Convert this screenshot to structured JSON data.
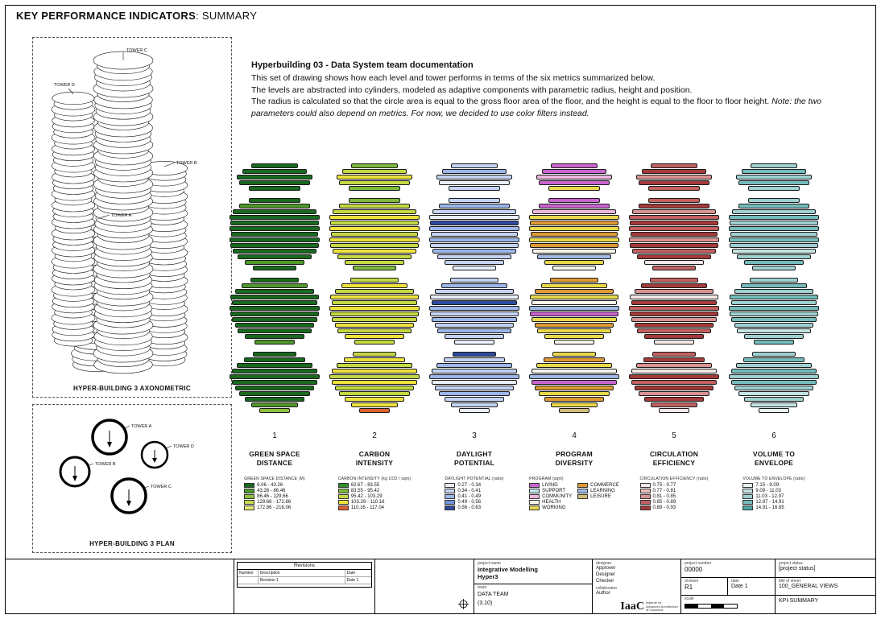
{
  "page": {
    "title_bold": "KEY PERFORMANCE INDICATORS",
    "title_rest": ": SUMMARY"
  },
  "description": {
    "heading": "Hyperbuilding 03 - Data System team documentation",
    "line1": "This set of drawing  shows how each level and tower performs in terms of the six metrics summarized below.",
    "line2": "The levels are abstracted into  cylinders, modeled as adaptive components with parametric radius, height and position.",
    "line3": "The radius is calculated so that the circle area is equal to the gross floor area of the floor, and the height is equal to the floor to floor height. ",
    "line3_italic": "Note: the two parameters could also depend on metrics. For now, we decided to use color filters instead."
  },
  "axon": {
    "caption": "HYPER-BUILDING 3 AXONOMETRIC",
    "labels": {
      "a": "TOWER A",
      "b": "TOWER B",
      "c": "TOWER C",
      "d": "TOWER D"
    }
  },
  "plan": {
    "caption": "HYPER-BUILDING 3 PLAN",
    "labels": {
      "a": "TOWER A",
      "b": "TOWER B",
      "c": "TOWER C",
      "d": "TOWER D"
    }
  },
  "stack": {
    "widths": [
      [
        52,
        72,
        84,
        78,
        58
      ],
      [
        58,
        78,
        92,
        100,
        98,
        100,
        96,
        100,
        98,
        92,
        82,
        66,
        48
      ],
      [
        54,
        74,
        88,
        98,
        94,
        100,
        98,
        94,
        88,
        82,
        66,
        44
      ],
      [
        48,
        68,
        84,
        94,
        100,
        94,
        88,
        78,
        66,
        52,
        34
      ]
    ]
  },
  "metrics": [
    {
      "number": "1",
      "title": "GREEN SPACE DISTANCE",
      "legend_header": "GREEN SPACE DISTANCE (M)",
      "palette": [
        "#19691f",
        "#50982c",
        "#8fc03c",
        "#c3da4e",
        "#e6ec74"
      ],
      "colors": [
        "00000",
        "0100000000010",
        "010000000001",
        "00000000012"
      ],
      "legend_cols": [
        [
          {
            "c": 0,
            "label": "6.06 - 43.26"
          },
          {
            "c": 1,
            "label": "43.26 - 86.46"
          },
          {
            "c": 2,
            "label": "86.46 - 129.66"
          },
          {
            "c": 3,
            "label": "129.66 - 172.86"
          },
          {
            "c": 4,
            "label": "172.86 - 216.06"
          }
        ]
      ]
    },
    {
      "number": "2",
      "title": "CARBON INTENSITY",
      "legend_header": "CARBON INTENSITY (kg CO2 / sqm)",
      "palette": [
        "#2f8f2f",
        "#7cb93b",
        "#c4d843",
        "#eee23d",
        "#e06030"
      ],
      "colors": [
        "12321",
        "1223232323221",
        "232323223232",
        "23232322334"
      ],
      "legend_cols": [
        [
          {
            "c": 0,
            "label": "62.67 - 83.55"
          },
          {
            "c": 1,
            "label": "83.55 - 95.42"
          },
          {
            "c": 2,
            "label": "95.42 - 103.29"
          },
          {
            "c": 3,
            "label": "103.29 - 110.16"
          },
          {
            "c": 4,
            "label": "110.16 - 117.04"
          }
        ]
      ]
    },
    {
      "number": "3",
      "title": "DAYLIGHT POTENTIAL",
      "legend_header": "DAYLIGHT POTENTIAL (ratio)",
      "palette": [
        "#e8eefb",
        "#c4d3f3",
        "#9cb6ea",
        "#7093dc",
        "#2d4a9e"
      ],
      "colors": [
        "12101",
        "1210421212110",
        "121042121210",
        "41212012110"
      ],
      "legend_cols": [
        [
          {
            "c": 0,
            "label": "0.27 - 0.34"
          },
          {
            "c": 1,
            "label": "0.34 - 0.41"
          },
          {
            "c": 2,
            "label": "0.41 - 0.49"
          },
          {
            "c": 3,
            "label": "0.49 - 0.56"
          },
          {
            "c": 4,
            "label": "0.56 - 0.63"
          }
        ]
      ]
    },
    {
      "number": "4",
      "title": "PROGRAM DIVERSITY",
      "legend_header": "PROGRAM (sqm)",
      "palette": [
        "#c964cf",
        "#bfe3ee",
        "#ecb6dd",
        "#f4f4ea",
        "#e8d84a",
        "#dd9a33",
        "#9fb9e6",
        "#cdbd7a"
      ],
      "colors": [
        "00204",
        "0024545453643",
        "545436045443",
        "45436054547"
      ],
      "legend_cols": [
        [
          {
            "c": 0,
            "label": "LIVING"
          },
          {
            "c": 1,
            "label": "SUPPORT"
          },
          {
            "c": 2,
            "label": "COMMUNITY"
          },
          {
            "c": 3,
            "label": "HEALTH"
          },
          {
            "c": 4,
            "label": "WORKING"
          }
        ],
        [
          {
            "c": 5,
            "label": "COMMERCE"
          },
          {
            "c": 6,
            "label": "LEARNING"
          },
          {
            "c": 7,
            "label": "LEISURE"
          }
        ]
      ]
    },
    {
      "number": "5",
      "title": "CIRCULATION EFFICIENCY",
      "legend_header": "CIRCULATION EFFICIENCY (ratio)",
      "palette": [
        "#f6e7e7",
        "#eabfbf",
        "#d99393",
        "#c26060",
        "#a53a3a"
      ],
      "colors": [
        "34243",
        "3423434243403",
        "342043424340",
        "34204342430"
      ],
      "legend_cols": [
        [
          {
            "c": 0,
            "label": "0.75 - 0.77"
          },
          {
            "c": 1,
            "label": "0.77 - 0.81"
          },
          {
            "c": 2,
            "label": "0.81 - 0.85"
          },
          {
            "c": 3,
            "label": "0.85 - 0.89"
          },
          {
            "c": 4,
            "label": "0.89 - 0.93"
          }
        ]
      ]
    },
    {
      "number": "6",
      "title": "VOLUME TO ENVELOPE",
      "legend_header": "VOLUME TO ENVELOPE (ratio)",
      "palette": [
        "#e6f3f3",
        "#c4e3e3",
        "#9ed0d0",
        "#74bcbc",
        "#4da6a6"
      ],
      "colors": [
        "23232",
        "2323232321232",
        "232323232123",
        "23232321210"
      ],
      "legend_cols": [
        [
          {
            "c": 0,
            "label": "7.15 - 9.09"
          },
          {
            "c": 1,
            "label": "9.09 - 11.03"
          },
          {
            "c": 2,
            "label": "11.03 - 12.97"
          },
          {
            "c": 3,
            "label": "12.97 - 14.91"
          },
          {
            "c": 4,
            "label": "14.91 - 16.85"
          }
        ]
      ]
    }
  ],
  "titleblock": {
    "revisions": {
      "title": "Revisions",
      "col_number": "Number",
      "col_description": "Description",
      "col_date": "Date",
      "row_number": "",
      "row_description": "Revision 1",
      "row_date": "Date 1"
    },
    "project_name_label": "project name",
    "project_name_line1": "Integrative Modelling",
    "project_name_line2": "Hyper3",
    "team_label": "team",
    "team_line1": "DATA TEAM",
    "team_line2": "(3.10)",
    "designer_label": "designer",
    "designer_lines": [
      "Approver",
      "Designer",
      "Checker"
    ],
    "collaborator_label": "collaborator",
    "collaborator": "Author",
    "logo": "IaaC",
    "logo_sub": [
      "Institute for",
      "Advanced Architecture",
      "of Catalonia"
    ],
    "project_number_label": "project number",
    "project_number": "00000",
    "revision_label": "revision",
    "revision_code": "R1",
    "date_label": "date",
    "date": "Date 1",
    "scale_label": "scale",
    "project_status_label": "project status",
    "project_status": "[project status]",
    "sheet_label": "title of sheet",
    "sheet_title": "100_GENERAL VIEWS",
    "sheet_code": "KPI-SUMMARY"
  }
}
